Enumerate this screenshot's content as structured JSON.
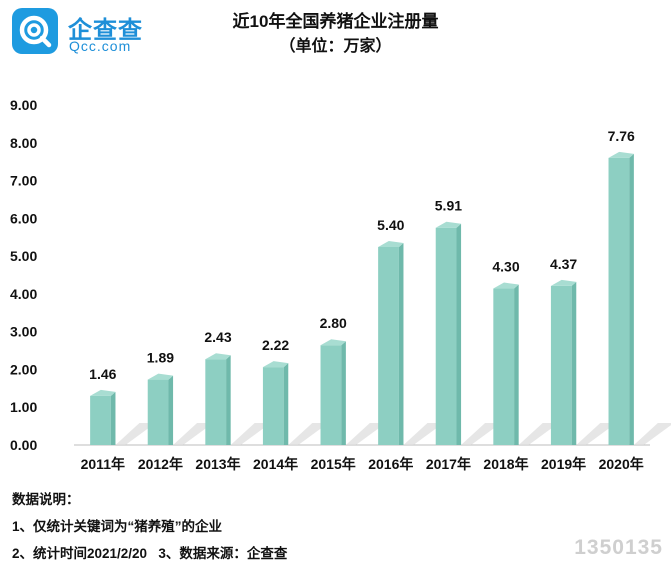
{
  "logo": {
    "name": "企查查",
    "domain": "Qcc.com"
  },
  "chart_data": {
    "type": "bar",
    "title": "近10年全国养猪企业注册量",
    "subtitle": "（单位：万家）",
    "categories": [
      "2011年",
      "2012年",
      "2013年",
      "2014年",
      "2015年",
      "2016年",
      "2017年",
      "2018年",
      "2019年",
      "2020年"
    ],
    "values": [
      1.46,
      1.89,
      2.43,
      2.22,
      2.8,
      5.4,
      5.91,
      4.3,
      4.37,
      7.76
    ],
    "data_labels": [
      "1.46",
      "1.89",
      "2.43",
      "2.22",
      "2.80",
      "5.40",
      "5.91",
      "4.30",
      "4.37",
      "7.76"
    ],
    "ylim": [
      0,
      9
    ],
    "yticks": [
      "0.00",
      "1.00",
      "2.00",
      "3.00",
      "4.00",
      "5.00",
      "6.00",
      "7.00",
      "8.00",
      "9.00"
    ],
    "grid": false,
    "legend": "none",
    "bar_color": "#8dcfc2"
  },
  "notes": {
    "heading": "数据说明：",
    "line1": "1、仅统计关键词为“猪养殖”的企业",
    "line2": "2、统计时间2021/2/20   3、数据来源：企查查"
  },
  "watermark": "1350135"
}
